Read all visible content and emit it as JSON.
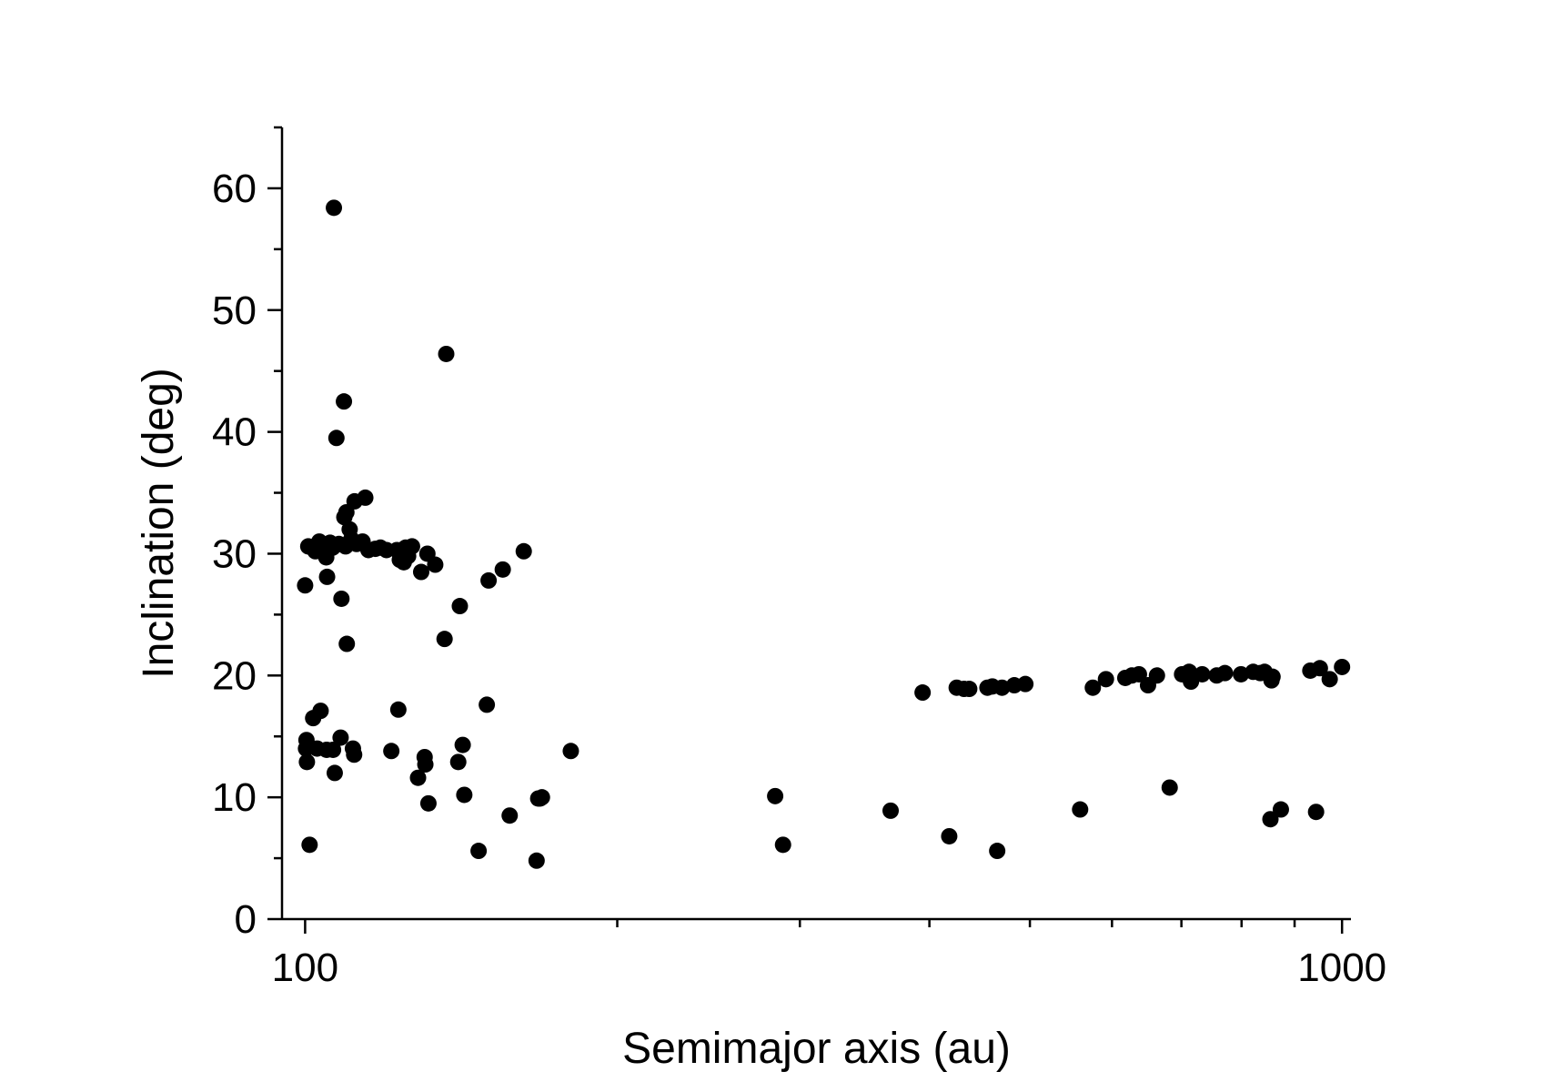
{
  "chart_data": {
    "type": "scatter",
    "title": "",
    "xlabel": "Semimajor axis (au)",
    "ylabel": "Inclination (deg)",
    "x_scale": "log",
    "xlim": [
      95,
      1020
    ],
    "ylim": [
      0,
      65
    ],
    "grid": false,
    "legend": "none",
    "marker_color": "#000000",
    "x_tick_labels": [
      {
        "value": 100,
        "label": "100"
      },
      {
        "value": 1000,
        "label": "1000"
      }
    ],
    "x_minor_ticks": [
      200,
      300,
      400,
      500,
      600,
      700,
      800,
      900
    ],
    "y_tick_labels": [
      {
        "value": 0,
        "label": "0"
      },
      {
        "value": 10,
        "label": "10"
      },
      {
        "value": 20,
        "label": "20"
      },
      {
        "value": 30,
        "label": "30"
      },
      {
        "value": 40,
        "label": "40"
      },
      {
        "value": 50,
        "label": "50"
      },
      {
        "value": 60,
        "label": "60"
      }
    ],
    "y_minor_ticks": [
      5,
      15,
      25,
      35,
      45,
      55,
      65
    ],
    "series": [
      {
        "points": [
          [
            100.0,
            27.4
          ],
          [
            100.2,
            14.0
          ],
          [
            100.3,
            14.7
          ],
          [
            100.4,
            12.9
          ],
          [
            101.0,
            6.1
          ],
          [
            100.7,
            30.6
          ],
          [
            101.5,
            30.5
          ],
          [
            101.8,
            16.5
          ],
          [
            102.3,
            30.2
          ],
          [
            102.7,
            14.0
          ],
          [
            103.2,
            31.0
          ],
          [
            103.5,
            17.1
          ],
          [
            103.7,
            30.7
          ],
          [
            104.5,
            30.4
          ],
          [
            104.8,
            29.7
          ],
          [
            104.9,
            13.9
          ],
          [
            105.0,
            28.1
          ],
          [
            105.7,
            30.9
          ],
          [
            106.3,
            30.5
          ],
          [
            106.4,
            13.9
          ],
          [
            106.6,
            58.4
          ],
          [
            106.8,
            12.0
          ],
          [
            107.2,
            39.5
          ],
          [
            107.8,
            30.8
          ],
          [
            108.2,
            14.9
          ],
          [
            108.4,
            26.3
          ],
          [
            109.0,
            42.5
          ],
          [
            109.1,
            33.0
          ],
          [
            109.4,
            30.6
          ],
          [
            109.6,
            33.4
          ],
          [
            109.7,
            22.6
          ],
          [
            110.4,
            32.0
          ],
          [
            110.8,
            31.2
          ],
          [
            111.2,
            14.0
          ],
          [
            111.5,
            13.5
          ],
          [
            111.6,
            34.3
          ],
          [
            112.1,
            30.8
          ],
          [
            113.6,
            31.0
          ],
          [
            114.3,
            34.6
          ],
          [
            115.1,
            30.3
          ],
          [
            116.9,
            30.4
          ],
          [
            118.2,
            30.5
          ],
          [
            119.8,
            30.3
          ],
          [
            121.1,
            13.8
          ],
          [
            122.6,
            30.3
          ],
          [
            123.0,
            17.2
          ],
          [
            123.4,
            29.5
          ],
          [
            124.5,
            29.3
          ],
          [
            125.0,
            30.5
          ],
          [
            125.7,
            29.8
          ],
          [
            126.8,
            30.6
          ],
          [
            128.5,
            11.6
          ],
          [
            129.4,
            28.5
          ],
          [
            130.4,
            13.3
          ],
          [
            130.6,
            12.7
          ],
          [
            131.2,
            30.0
          ],
          [
            131.5,
            9.5
          ],
          [
            133.5,
            29.1
          ],
          [
            136.3,
            23.0
          ],
          [
            136.8,
            46.4
          ],
          [
            140.5,
            12.9
          ],
          [
            141.0,
            25.7
          ],
          [
            141.9,
            14.3
          ],
          [
            142.4,
            10.2
          ],
          [
            147.0,
            5.6
          ],
          [
            149.7,
            17.6
          ],
          [
            150.3,
            27.8
          ],
          [
            155.1,
            28.7
          ],
          [
            157.5,
            8.5
          ],
          [
            162.5,
            30.2
          ],
          [
            167.2,
            4.8
          ],
          [
            167.8,
            9.9
          ],
          [
            168.5,
            9.9
          ],
          [
            169.2,
            10.0
          ],
          [
            180.4,
            13.8
          ],
          [
            284,
            10.1
          ],
          [
            289,
            6.1
          ],
          [
            367,
            8.9
          ],
          [
            394,
            18.6
          ],
          [
            418,
            6.8
          ],
          [
            425,
            19.0
          ],
          [
            432,
            18.9
          ],
          [
            437,
            18.9
          ],
          [
            455,
            19.0
          ],
          [
            460,
            19.1
          ],
          [
            465,
            5.6
          ],
          [
            470,
            19.0
          ],
          [
            483,
            19.2
          ],
          [
            495,
            19.3
          ],
          [
            559,
            9.0
          ],
          [
            575,
            19.0
          ],
          [
            592,
            19.7
          ],
          [
            618,
            19.8
          ],
          [
            627,
            20.0
          ],
          [
            637,
            20.1
          ],
          [
            650,
            19.2
          ],
          [
            663,
            20.0
          ],
          [
            682,
            10.8
          ],
          [
            701,
            20.1
          ],
          [
            712,
            20.3
          ],
          [
            715,
            19.5
          ],
          [
            733,
            20.1
          ],
          [
            757,
            20.0
          ],
          [
            771,
            20.2
          ],
          [
            799,
            20.1
          ],
          [
            821,
            20.3
          ],
          [
            834,
            20.2
          ],
          [
            842,
            20.3
          ],
          [
            853,
            8.2
          ],
          [
            855,
            19.6
          ],
          [
            857,
            19.9
          ],
          [
            873,
            9.0
          ],
          [
            932,
            20.4
          ],
          [
            944,
            8.8
          ],
          [
            952,
            20.6
          ],
          [
            973,
            19.7
          ],
          [
            1000,
            20.7
          ]
        ]
      }
    ]
  }
}
